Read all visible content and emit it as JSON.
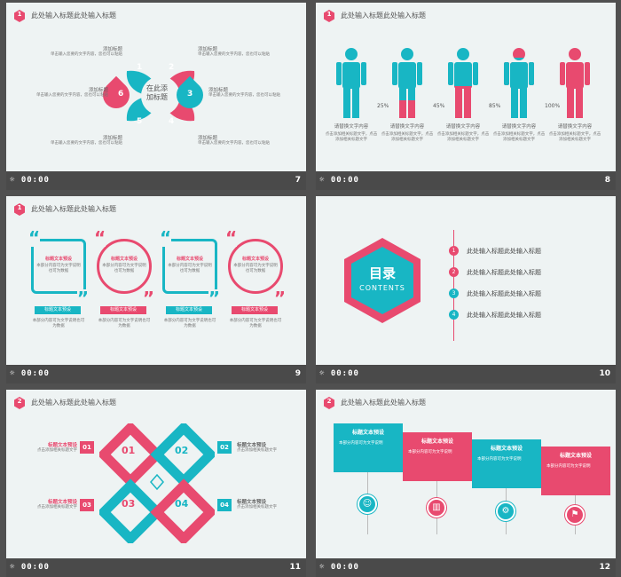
{
  "colors": {
    "pink": "#e84a6f",
    "teal": "#18b6c4",
    "bg": "#eef3f3",
    "bar": "#4a4a4a"
  },
  "slides": [
    {
      "num": "7",
      "time": "00:00",
      "badge": "1",
      "title": "此处输入标题此处输入标题",
      "center": "在此添\n加标题",
      "petals": [
        "1",
        "2",
        "3",
        "4",
        "5",
        "6"
      ],
      "items": [
        {
          "head": "添加标题",
          "body": "单击输入您要的文字内容，您也可以粘贴"
        },
        {
          "head": "添加标题",
          "body": "单击输入您要的文字内容，您也可以粘贴"
        },
        {
          "head": "添加标题",
          "body": "单击输入您要的文字内容，您也可以粘贴"
        },
        {
          "head": "添加标题",
          "body": "单击输入您要的文字内容，您也可以粘贴"
        },
        {
          "head": "添加标题",
          "body": "单击输入您要的文字内容，您也可以粘贴"
        },
        {
          "head": "添加标题",
          "body": "单击输入您要的文字内容，您也可以粘贴"
        }
      ]
    },
    {
      "num": "8",
      "time": "00:00",
      "badge": "1",
      "title": "此处输入标题此处输入标题",
      "people": [
        {
          "pct": "",
          "fill": 0,
          "color": "teal"
        },
        {
          "pct": "25%",
          "fill": 0.25,
          "color": "teal"
        },
        {
          "pct": "45%",
          "fill": 0.45,
          "color": "teal"
        },
        {
          "pct": "85%",
          "fill": 0.85,
          "color": "pink"
        },
        {
          "pct": "100%",
          "fill": 1,
          "color": "pink"
        }
      ],
      "caption": "请替换文字内容",
      "body": "点击添加相关标题文字，点击添加相关标题文字"
    },
    {
      "num": "9",
      "time": "00:00",
      "badge": "1",
      "title": "此处输入标题此处输入标题",
      "cards": [
        {
          "head": "标题文本预设",
          "body": "本部分内容可为文字说明也可为数据",
          "btn": "标题文本预设",
          "color": "teal"
        },
        {
          "head": "标题文本预设",
          "body": "本部分内容可为文字说明也可为数据",
          "btn": "标题文本预设",
          "color": "pink"
        },
        {
          "head": "标题文本预设",
          "body": "本部分内容可为文字说明也可为数据",
          "btn": "标题文本预设",
          "color": "teal"
        },
        {
          "head": "标题文本预设",
          "body": "本部分内容可为文字说明也可为数据",
          "btn": "标题文本预设",
          "color": "pink"
        }
      ]
    },
    {
      "num": "10",
      "time": "00:00",
      "title": "目录",
      "subtitle": "CONTENTS",
      "toc": [
        {
          "n": "1",
          "label": "此处输入标题此处输入标题"
        },
        {
          "n": "2",
          "label": "此处输入标题此处输入标题"
        },
        {
          "n": "3",
          "label": "此处输入标题此处输入标题"
        },
        {
          "n": "4",
          "label": "此处输入标题此处输入标题"
        }
      ]
    },
    {
      "num": "11",
      "time": "00:00",
      "badge": "2",
      "title": "此处输入标题此处输入标题",
      "items": [
        {
          "n": "01",
          "head": "标题文本预设",
          "body": "点击添加相关标题文字"
        },
        {
          "n": "02",
          "head": "标题文本预设",
          "body": "点击添加相关标题文字"
        },
        {
          "n": "03",
          "head": "标题文本预设",
          "body": "点击添加相关标题文字"
        },
        {
          "n": "04",
          "head": "标题文本预设",
          "body": "点击添加相关标题文字"
        }
      ]
    },
    {
      "num": "12",
      "time": "00:00",
      "badge": "2",
      "title": "此处输入标题此处输入标题",
      "steps": [
        {
          "head": "标题文本预设",
          "body": "本部分内容可为文字说明",
          "color": "teal",
          "icon": "person-icon"
        },
        {
          "head": "标题文本预设",
          "body": "本部分内容可为文字说明",
          "color": "pink",
          "icon": "chart-icon"
        },
        {
          "head": "标题文本预设",
          "body": "本部分内容可为文字说明",
          "color": "teal",
          "icon": "gear-icon"
        },
        {
          "head": "标题文本预设",
          "body": "本部分内容可为文字说明",
          "color": "pink",
          "icon": "flag-icon"
        }
      ]
    }
  ]
}
